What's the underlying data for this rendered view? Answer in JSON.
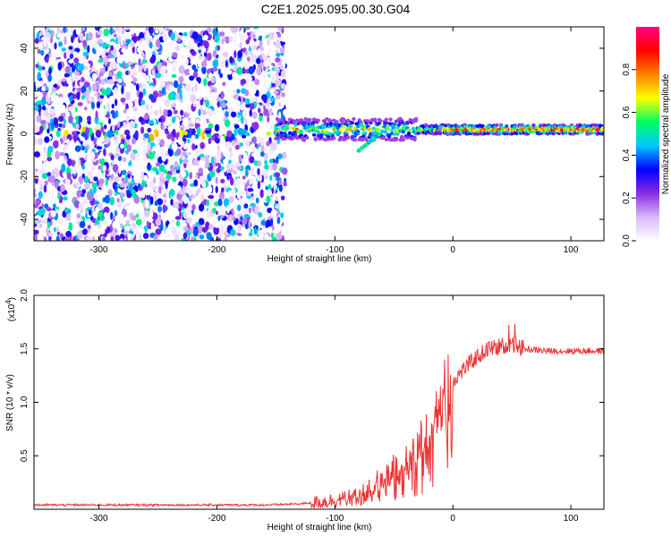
{
  "title": "C2E1.2025.095.00.30.G04",
  "chart_data": [
    {
      "type": "heatmap",
      "title": "C2E1.2025.095.00.30.G04",
      "xlabel": "Height of straight line (km)",
      "ylabel": "Frequency (Hz)",
      "xlim": [
        -355,
        128
      ],
      "ylim": [
        -50,
        50
      ],
      "x_ticks": [
        -300,
        -200,
        -100,
        0,
        100
      ],
      "y_ticks": [
        -40,
        -20,
        0,
        20,
        40
      ],
      "colorbar": {
        "label": "Normalized spectral amplitude",
        "range": [
          0,
          1
        ],
        "ticks": [
          0.0,
          0.2,
          0.4,
          0.6,
          0.8
        ],
        "colors": [
          "#ffffff",
          "#d8b8f8",
          "#8a2be2",
          "#0000ff",
          "#00c8ff",
          "#00ff60",
          "#ffff00",
          "#ff8000",
          "#ff0000",
          "#ff0080"
        ]
      },
      "regions": [
        {
          "name": "noise",
          "x_range": [
            -355,
            -150
          ],
          "freq_range": [
            -50,
            50
          ],
          "amplitude": 0.05
        },
        {
          "name": "signal",
          "x_range": [
            -150,
            128
          ],
          "freq_center": 2,
          "amplitude": 0.9
        }
      ],
      "branch": {
        "x_range": [
          -80,
          -62
        ],
        "freq_range": [
          -8,
          0
        ],
        "amplitude": 0.4
      }
    },
    {
      "type": "line",
      "xlabel": "Height of straight line (km)",
      "ylabel": "SNR (10 * v/v)",
      "y_multiplier": "(x10",
      "y_multiplier_exp": "4",
      "xlim": [
        -355,
        128
      ],
      "ylim": [
        0,
        2.0
      ],
      "x_ticks": [
        -300,
        -200,
        -100,
        0,
        100
      ],
      "y_ticks": [
        0.5,
        1.0,
        1.5,
        2.0
      ],
      "color": "#ee3333",
      "series": [
        {
          "x": [
            -355,
            -300,
            -250,
            -200,
            -160,
            -130,
            -110,
            -90,
            -80,
            -70,
            -60,
            -50,
            -40,
            -30,
            -20,
            -10,
            0,
            10,
            20,
            30,
            40,
            50,
            60,
            80,
            100,
            128
          ],
          "values": [
            0.04,
            0.04,
            0.04,
            0.04,
            0.04,
            0.05,
            0.07,
            0.1,
            0.13,
            0.22,
            0.3,
            0.38,
            0.46,
            0.6,
            0.8,
            1.05,
            1.2,
            1.32,
            1.42,
            1.5,
            1.52,
            1.55,
            1.5,
            1.48,
            1.48,
            1.48
          ]
        }
      ]
    }
  ]
}
